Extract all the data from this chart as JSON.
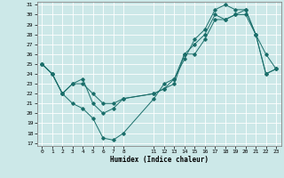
{
  "xlabel": "Humidex (Indice chaleur)",
  "bg_color": "#cce8e8",
  "grid_color": "#b0d8d8",
  "line_color": "#1a6e6a",
  "ylim": [
    17,
    31
  ],
  "xlim": [
    -0.5,
    23.5
  ],
  "yticks": [
    17,
    18,
    19,
    20,
    21,
    22,
    23,
    24,
    25,
    26,
    27,
    28,
    29,
    30,
    31
  ],
  "xtick_positions": [
    0,
    1,
    2,
    3,
    4,
    5,
    6,
    7,
    8,
    11,
    12,
    13,
    14,
    15,
    16,
    17,
    18,
    19,
    20,
    21,
    22,
    23
  ],
  "xtick_labels": [
    "0",
    "1",
    "2",
    "3",
    "4",
    "5",
    "6",
    "7",
    "8",
    "11",
    "12",
    "13",
    "14",
    "15",
    "16",
    "17",
    "18",
    "19",
    "20",
    "21",
    "22",
    "23"
  ],
  "curve1_x": [
    0,
    1,
    2,
    3,
    4,
    5,
    6,
    7,
    8,
    11,
    12,
    13,
    14,
    15,
    16,
    17,
    18,
    19,
    20,
    21,
    22,
    23
  ],
  "curve1_y": [
    25,
    24,
    22,
    21,
    20.5,
    19.5,
    17.5,
    17.3,
    18,
    21.5,
    23,
    23.5,
    26,
    26,
    27.5,
    29.5,
    29.5,
    30,
    30,
    28,
    24,
    24.5
  ],
  "curve2_x": [
    0,
    1,
    2,
    3,
    4,
    5,
    6,
    7,
    8,
    11,
    12,
    13,
    14,
    15,
    16,
    17,
    18,
    19,
    20,
    21,
    22,
    23
  ],
  "curve2_y": [
    25,
    24,
    22,
    23,
    23,
    22,
    21,
    21,
    21.5,
    22,
    22.5,
    23.5,
    25.5,
    27.5,
    28.5,
    30.5,
    31,
    30.5,
    30.5,
    28,
    26,
    24.5
  ],
  "curve3_x": [
    0,
    1,
    2,
    3,
    4,
    5,
    6,
    7,
    8,
    11,
    12,
    13,
    14,
    15,
    16,
    17,
    18,
    19,
    20,
    21,
    22,
    23
  ],
  "curve3_y": [
    25,
    24,
    22,
    23,
    23.5,
    21,
    20,
    20.5,
    21.5,
    22,
    22.5,
    23,
    26,
    27,
    28,
    30,
    29.5,
    30,
    30.5,
    28,
    24,
    24.5
  ]
}
